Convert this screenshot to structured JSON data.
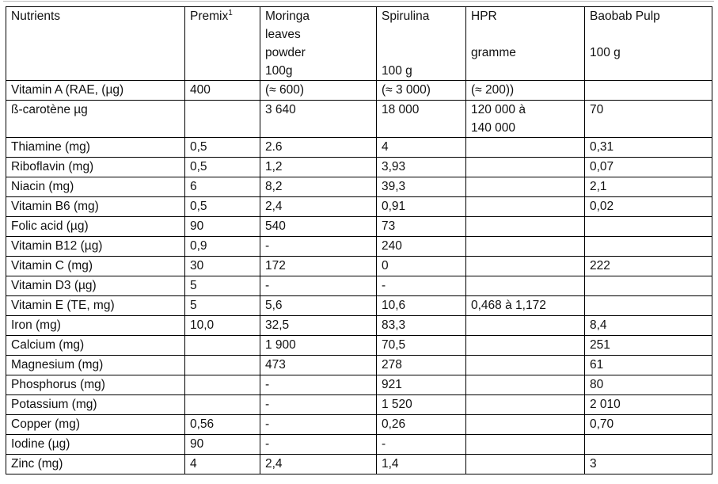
{
  "page": {
    "background_color": "#ffffff",
    "border_color": "#000000",
    "text_color": "#111111"
  },
  "table": {
    "columns": [
      {
        "id": "nutrients",
        "label": "Nutrients"
      },
      {
        "id": "premix",
        "label": "Premix",
        "footnote": "1"
      },
      {
        "id": "moringa",
        "label": "Moringa\nleaves\npowder\n100g"
      },
      {
        "id": "spirulina",
        "label": "Spirulina\n\n\n100 g"
      },
      {
        "id": "hpr",
        "label": "HPR\n\ngramme"
      },
      {
        "id": "baobab",
        "label": "Baobab Pulp\n\n100 g"
      }
    ],
    "rows": [
      {
        "nutrient": "Vitamin A (RAE, (µg)",
        "values": [
          "400",
          "(≈ 600)",
          "(≈ 3 000)",
          "(≈ 200))",
          ""
        ]
      },
      {
        "nutrient": "ß-carotène µg",
        "values": [
          "",
          "3 640",
          "18 000",
          "120 000 à\n140 000",
          "70"
        ]
      },
      {
        "nutrient": "Thiamine (mg)",
        "values": [
          "0,5",
          "2.6",
          "4",
          "",
          "0,31"
        ]
      },
      {
        "nutrient": "Riboflavin (mg)",
        "values": [
          "0,5",
          "1,2",
          "3,93",
          "",
          "0,07"
        ]
      },
      {
        "nutrient": "Niacin (mg)",
        "values": [
          "6",
          "8,2",
          "39,3",
          "",
          "2,1"
        ]
      },
      {
        "nutrient": "Vitamin B6 (mg)",
        "values": [
          "0,5",
          "2,4",
          "0,91",
          "",
          "0,02"
        ]
      },
      {
        "nutrient": "Folic acid (µg)",
        "values": [
          "90",
          "540",
          "73",
          "",
          ""
        ]
      },
      {
        "nutrient": "Vitamin B12 (µg)",
        "values": [
          "0,9",
          "-",
          "240",
          "",
          ""
        ]
      },
      {
        "nutrient": "Vitamin C (mg)",
        "values": [
          "30",
          "172",
          "0",
          "",
          "222"
        ]
      },
      {
        "nutrient": "Vitamin D3 (µg)",
        "values": [
          "5",
          "-",
          "-",
          "",
          ""
        ]
      },
      {
        "nutrient": "Vitamin E (TE, mg)",
        "values": [
          "5",
          "5,6",
          "10,6",
          "0,468 à 1,172",
          ""
        ]
      },
      {
        "nutrient": "Iron (mg)",
        "values": [
          "10,0",
          "32,5",
          "83,3",
          "",
          "8,4"
        ]
      },
      {
        "nutrient": "Calcium (mg)",
        "values": [
          "",
          "1 900",
          "70,5",
          "",
          "251"
        ]
      },
      {
        "nutrient": "Magnesium (mg)",
        "values": [
          "",
          "473",
          "278",
          "",
          "61"
        ]
      },
      {
        "nutrient": "Phosphorus (mg)",
        "values": [
          "",
          "-",
          "921",
          "",
          "80"
        ]
      },
      {
        "nutrient": "Potassium (mg)",
        "values": [
          "",
          "-",
          "1 520",
          "",
          "2 010"
        ]
      },
      {
        "nutrient": "Copper (mg)",
        "values": [
          "0,56",
          "-",
          "0,26",
          "",
          "0,70"
        ]
      },
      {
        "nutrient": "Iodine (µg)",
        "values": [
          "90",
          "-",
          "-",
          "",
          ""
        ]
      },
      {
        "nutrient": "Zinc (mg)",
        "values": [
          "4",
          "2,4",
          "1,4",
          "",
          "3"
        ]
      }
    ]
  }
}
